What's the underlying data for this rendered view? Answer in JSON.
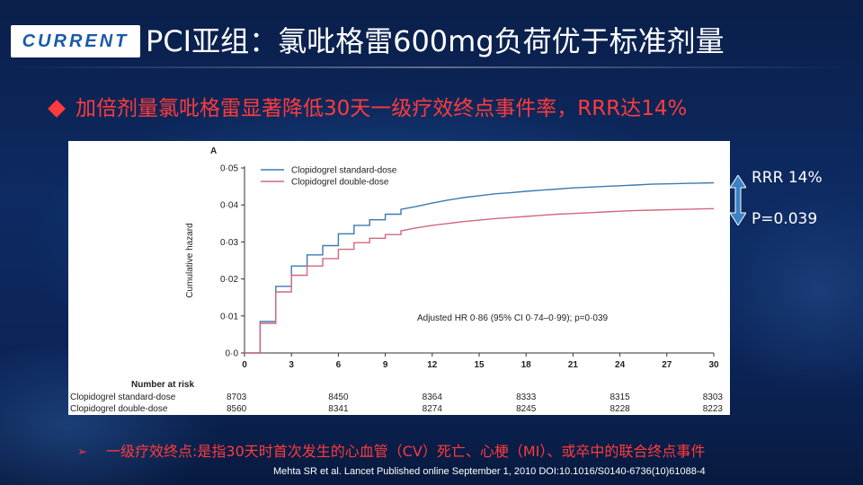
{
  "logo": {
    "text": "CURRENT"
  },
  "title": "PCI亚组：氯吡格雷600mg负荷优于标准剂量",
  "bullet": "加倍剂量氯吡格雷显著降低30天一级疗效终点事件率，RRR达14%",
  "side": {
    "rrr": "RRR 14%",
    "p": "P=0.039",
    "arrow_color": "#3b82c4"
  },
  "footnote_arrow": "➢",
  "footnote": "一级疗效终点:是指30天时首次发生的心血管（CV）死亡、心梗（MI）、或卒中的联合终点事件",
  "citation": "Mehta SR et al. Lancet Published online September 1, 2010 DOI:10.1016/S0140-6736(10)61088-4",
  "colors": {
    "accent_red": "#ff3b3b",
    "standard": "#3d7ab0",
    "double": "#d2687e"
  },
  "chart_data": {
    "type": "line",
    "panel_label": "A",
    "ylabel": "Cumulative hazard",
    "ylim": [
      0,
      0.05
    ],
    "xlim": [
      0,
      30
    ],
    "y_ticks": [
      "0·0",
      "0·01",
      "0·02",
      "0·03",
      "0·04",
      "0·05"
    ],
    "x_ticks": [
      "0",
      "3",
      "6",
      "9",
      "12",
      "15",
      "18",
      "21",
      "24",
      "27",
      "30"
    ],
    "annotation": "Adjusted HR 0·86 (95% CI 0·74–0·99); p=0·039",
    "legend_position": "top-left",
    "series": [
      {
        "name": "Clopidogrel standard-dose",
        "color": "#3d7ab0",
        "x": [
          0,
          1,
          1,
          2,
          2,
          3,
          3,
          4,
          4,
          5,
          5,
          6,
          6,
          7,
          7,
          8,
          8,
          9,
          9,
          10,
          10,
          11,
          12,
          13,
          14,
          15,
          16,
          17,
          18,
          19,
          20,
          21,
          22,
          23,
          24,
          25,
          26,
          27,
          28,
          29,
          30
        ],
        "y": [
          0,
          0,
          0.0085,
          0.0085,
          0.018,
          0.018,
          0.0235,
          0.0235,
          0.0265,
          0.0265,
          0.029,
          0.029,
          0.0322,
          0.0322,
          0.0345,
          0.0345,
          0.036,
          0.036,
          0.0375,
          0.0375,
          0.0388,
          0.0396,
          0.0405,
          0.0413,
          0.042,
          0.0425,
          0.043,
          0.0433,
          0.0437,
          0.044,
          0.0443,
          0.0446,
          0.0448,
          0.045,
          0.0452,
          0.0454,
          0.0456,
          0.0457,
          0.0458,
          0.0459,
          0.046
        ]
      },
      {
        "name": "Clopidogrel double-dose",
        "color": "#d2687e",
        "x": [
          0,
          1,
          1,
          2,
          2,
          3,
          3,
          4,
          4,
          5,
          5,
          6,
          6,
          7,
          7,
          8,
          8,
          9,
          9,
          10,
          10,
          11,
          12,
          13,
          14,
          15,
          16,
          17,
          18,
          19,
          20,
          21,
          22,
          23,
          24,
          25,
          26,
          27,
          28,
          29,
          30
        ],
        "y": [
          0,
          0,
          0.008,
          0.008,
          0.0165,
          0.0165,
          0.021,
          0.021,
          0.0235,
          0.0235,
          0.0255,
          0.0255,
          0.028,
          0.028,
          0.0298,
          0.0298,
          0.031,
          0.031,
          0.032,
          0.032,
          0.033,
          0.0338,
          0.0345,
          0.035,
          0.0355,
          0.0359,
          0.0363,
          0.0366,
          0.0369,
          0.0372,
          0.0375,
          0.0377,
          0.0379,
          0.0381,
          0.0383,
          0.0385,
          0.0386,
          0.0387,
          0.0388,
          0.0389,
          0.039
        ]
      }
    ],
    "risk_table": {
      "title": "Number at risk",
      "time_points": [
        0,
        6,
        12,
        18,
        24,
        30
      ],
      "rows": [
        {
          "label": "Clopidogrel standard-dose",
          "values": [
            "8703",
            "8450",
            "8364",
            "8333",
            "8315",
            "8303"
          ]
        },
        {
          "label": "Clopidogrel double-dose",
          "values": [
            "8560",
            "8341",
            "8274",
            "8245",
            "8228",
            "8223"
          ]
        }
      ]
    }
  }
}
